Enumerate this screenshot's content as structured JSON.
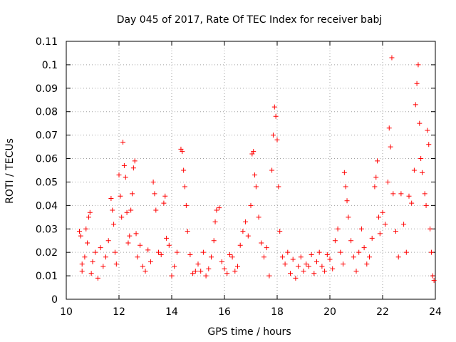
{
  "chart_data": {
    "type": "scatter",
    "title": "Day 045 of 2017, Rate Of TEC Index for receiver babj",
    "xlabel": "GPS time / hours",
    "ylabel": "ROTI / TECUs",
    "xlim": [
      10,
      24
    ],
    "ylim": [
      0,
      0.11
    ],
    "xticks": [
      10,
      12,
      14,
      16,
      18,
      20,
      22,
      24
    ],
    "xtick_labels": [
      "10",
      "12",
      "14",
      "16",
      "18",
      "20",
      "22",
      "24"
    ],
    "yticks": [
      0,
      0.01,
      0.02,
      0.03,
      0.04,
      0.05,
      0.06,
      0.07,
      0.08,
      0.09,
      0.1,
      0.11
    ],
    "ytick_labels": [
      "0",
      "0.01",
      "0.02",
      "0.03",
      "0.04",
      "0.05",
      "0.06",
      "0.07",
      "0.08",
      "0.09",
      "0.1",
      "0.11"
    ],
    "grid": true,
    "marker": "+",
    "color": "#ff0000",
    "series": [
      {
        "name": "ROTI",
        "points": [
          [
            10.5,
            0.029
          ],
          [
            10.55,
            0.027
          ],
          [
            10.6,
            0.015
          ],
          [
            10.6,
            0.012
          ],
          [
            10.7,
            0.018
          ],
          [
            10.75,
            0.03
          ],
          [
            10.8,
            0.024
          ],
          [
            10.85,
            0.035
          ],
          [
            10.9,
            0.037
          ],
          [
            10.95,
            0.011
          ],
          [
            11.0,
            0.016
          ],
          [
            11.1,
            0.02
          ],
          [
            11.2,
            0.009
          ],
          [
            11.3,
            0.022
          ],
          [
            11.4,
            0.014
          ],
          [
            11.5,
            0.018
          ],
          [
            11.6,
            0.025
          ],
          [
            11.7,
            0.043
          ],
          [
            11.75,
            0.038
          ],
          [
            11.8,
            0.032
          ],
          [
            11.85,
            0.02
          ],
          [
            11.9,
            0.015
          ],
          [
            12.0,
            0.053
          ],
          [
            12.05,
            0.044
          ],
          [
            12.1,
            0.035
          ],
          [
            12.15,
            0.067
          ],
          [
            12.2,
            0.057
          ],
          [
            12.25,
            0.052
          ],
          [
            12.3,
            0.037
          ],
          [
            12.35,
            0.024
          ],
          [
            12.4,
            0.027
          ],
          [
            12.45,
            0.038
          ],
          [
            12.5,
            0.045
          ],
          [
            12.55,
            0.056
          ],
          [
            12.6,
            0.059
          ],
          [
            12.65,
            0.028
          ],
          [
            12.7,
            0.018
          ],
          [
            12.8,
            0.023
          ],
          [
            12.9,
            0.014
          ],
          [
            13.0,
            0.012
          ],
          [
            13.1,
            0.021
          ],
          [
            13.2,
            0.016
          ],
          [
            13.3,
            0.05
          ],
          [
            13.35,
            0.045
          ],
          [
            13.4,
            0.038
          ],
          [
            13.5,
            0.02
          ],
          [
            13.6,
            0.019
          ],
          [
            13.7,
            0.041
          ],
          [
            13.75,
            0.044
          ],
          [
            13.8,
            0.026
          ],
          [
            13.9,
            0.023
          ],
          [
            14.0,
            0.01
          ],
          [
            14.1,
            0.014
          ],
          [
            14.2,
            0.02
          ],
          [
            14.35,
            0.064
          ],
          [
            14.4,
            0.063
          ],
          [
            14.45,
            0.055
          ],
          [
            14.5,
            0.048
          ],
          [
            14.55,
            0.04
          ],
          [
            14.6,
            0.029
          ],
          [
            14.7,
            0.019
          ],
          [
            14.8,
            0.011
          ],
          [
            14.9,
            0.012
          ],
          [
            15.0,
            0.015
          ],
          [
            15.1,
            0.012
          ],
          [
            15.2,
            0.02
          ],
          [
            15.3,
            0.01
          ],
          [
            15.4,
            0.013
          ],
          [
            15.5,
            0.018
          ],
          [
            15.6,
            0.025
          ],
          [
            15.65,
            0.033
          ],
          [
            15.7,
            0.038
          ],
          [
            15.8,
            0.039
          ],
          [
            15.9,
            0.016
          ],
          [
            16.0,
            0.013
          ],
          [
            16.1,
            0.011
          ],
          [
            16.2,
            0.019
          ],
          [
            16.3,
            0.018
          ],
          [
            16.4,
            0.012
          ],
          [
            16.5,
            0.014
          ],
          [
            16.6,
            0.023
          ],
          [
            16.7,
            0.029
          ],
          [
            16.8,
            0.033
          ],
          [
            16.9,
            0.027
          ],
          [
            17.0,
            0.04
          ],
          [
            17.05,
            0.062
          ],
          [
            17.1,
            0.063
          ],
          [
            17.15,
            0.053
          ],
          [
            17.2,
            0.048
          ],
          [
            17.3,
            0.035
          ],
          [
            17.4,
            0.024
          ],
          [
            17.5,
            0.018
          ],
          [
            17.6,
            0.022
          ],
          [
            17.7,
            0.01
          ],
          [
            17.8,
            0.055
          ],
          [
            17.85,
            0.07
          ],
          [
            17.9,
            0.082
          ],
          [
            17.95,
            0.078
          ],
          [
            18.0,
            0.068
          ],
          [
            18.05,
            0.048
          ],
          [
            18.1,
            0.029
          ],
          [
            18.2,
            0.018
          ],
          [
            18.3,
            0.015
          ],
          [
            18.4,
            0.02
          ],
          [
            18.5,
            0.011
          ],
          [
            18.6,
            0.017
          ],
          [
            18.7,
            0.009
          ],
          [
            18.8,
            0.014
          ],
          [
            18.9,
            0.018
          ],
          [
            19.0,
            0.012
          ],
          [
            19.1,
            0.015
          ],
          [
            19.2,
            0.014
          ],
          [
            19.3,
            0.019
          ],
          [
            19.4,
            0.011
          ],
          [
            19.5,
            0.016
          ],
          [
            19.6,
            0.02
          ],
          [
            19.7,
            0.014
          ],
          [
            19.8,
            0.012
          ],
          [
            19.9,
            0.019
          ],
          [
            20.0,
            0.017
          ],
          [
            20.1,
            0.013
          ],
          [
            20.2,
            0.025
          ],
          [
            20.3,
            0.03
          ],
          [
            20.4,
            0.02
          ],
          [
            20.5,
            0.015
          ],
          [
            20.55,
            0.054
          ],
          [
            20.6,
            0.048
          ],
          [
            20.65,
            0.042
          ],
          [
            20.7,
            0.035
          ],
          [
            20.8,
            0.025
          ],
          [
            20.9,
            0.018
          ],
          [
            21.0,
            0.012
          ],
          [
            21.1,
            0.02
          ],
          [
            21.2,
            0.03
          ],
          [
            21.3,
            0.022
          ],
          [
            21.4,
            0.015
          ],
          [
            21.5,
            0.018
          ],
          [
            21.6,
            0.026
          ],
          [
            21.7,
            0.048
          ],
          [
            21.75,
            0.052
          ],
          [
            21.8,
            0.059
          ],
          [
            21.85,
            0.035
          ],
          [
            21.9,
            0.028
          ],
          [
            22.0,
            0.037
          ],
          [
            22.1,
            0.032
          ],
          [
            22.2,
            0.05
          ],
          [
            22.25,
            0.073
          ],
          [
            22.3,
            0.065
          ],
          [
            22.35,
            0.103
          ],
          [
            22.4,
            0.045
          ],
          [
            22.5,
            0.029
          ],
          [
            22.6,
            0.018
          ],
          [
            22.7,
            0.045
          ],
          [
            22.8,
            0.032
          ],
          [
            22.9,
            0.02
          ],
          [
            23.0,
            0.044
          ],
          [
            23.1,
            0.041
          ],
          [
            23.2,
            0.055
          ],
          [
            23.25,
            0.083
          ],
          [
            23.3,
            0.092
          ],
          [
            23.35,
            0.1
          ],
          [
            23.4,
            0.075
          ],
          [
            23.45,
            0.06
          ],
          [
            23.5,
            0.054
          ],
          [
            23.6,
            0.045
          ],
          [
            23.65,
            0.04
          ],
          [
            23.7,
            0.072
          ],
          [
            23.75,
            0.066
          ],
          [
            23.8,
            0.03
          ],
          [
            23.85,
            0.02
          ],
          [
            23.9,
            0.01
          ],
          [
            23.95,
            0.008
          ]
        ]
      }
    ]
  }
}
